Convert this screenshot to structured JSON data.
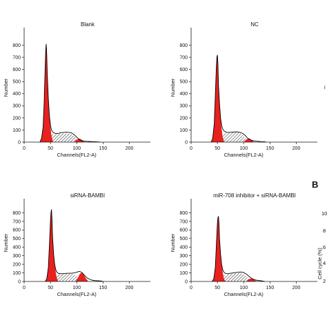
{
  "chart_data": [
    {
      "type": "area",
      "title": "Blank",
      "xlabel": "Channels(FL2-A)",
      "ylabel": "Number",
      "xlim": [
        0,
        240
      ],
      "ylim": [
        0,
        900
      ],
      "xticks": [
        "0",
        "50",
        "100",
        "150",
        "200"
      ],
      "yticks": [
        "0",
        "100",
        "200",
        "300",
        "400",
        "500",
        "600",
        "700",
        "800"
      ],
      "histogram": {
        "x": [
          30,
          33,
          36,
          38,
          40,
          41,
          42,
          43,
          44,
          46,
          48,
          50,
          52,
          55,
          60,
          65,
          70,
          75,
          80,
          85,
          90,
          95,
          100,
          105,
          110,
          115,
          120,
          125,
          130,
          135,
          140,
          145
        ],
        "y": [
          0,
          30,
          120,
          320,
          620,
          760,
          810,
          720,
          560,
          360,
          220,
          140,
          100,
          80,
          70,
          72,
          78,
          80,
          82,
          80,
          76,
          62,
          40,
          20,
          12,
          8,
          6,
          5,
          4,
          3,
          2,
          0
        ]
      },
      "g1_peak": {
        "x": [
          30,
          33,
          36,
          38,
          40,
          41,
          42,
          43,
          44,
          46,
          48,
          50,
          52,
          55
        ],
        "y": [
          0,
          30,
          120,
          320,
          620,
          760,
          810,
          720,
          560,
          360,
          220,
          120,
          50,
          0
        ]
      },
      "s_phase": {
        "x": [
          45,
          50,
          55,
          60,
          65,
          70,
          75,
          80,
          85,
          90,
          95,
          100,
          102
        ],
        "y": [
          30,
          55,
          65,
          65,
          68,
          70,
          72,
          72,
          70,
          64,
          50,
          25,
          0
        ]
      },
      "g2_peak": {
        "x": [
          95,
          100,
          105,
          110,
          115
        ],
        "y": [
          0,
          20,
          30,
          18,
          0
        ]
      }
    },
    {
      "type": "area",
      "title": "NC",
      "xlabel": "Channels(FL2-A)",
      "ylabel": "Number",
      "xlim": [
        0,
        240
      ],
      "ylim": [
        0,
        900
      ],
      "xticks": [
        "0",
        "50",
        "100",
        "150",
        "200"
      ],
      "yticks": [
        "0",
        "100",
        "200",
        "300",
        "400",
        "500",
        "600",
        "700",
        "800"
      ],
      "histogram": {
        "x": [
          38,
          41,
          44,
          46,
          48,
          49,
          50,
          51,
          52,
          54,
          56,
          58,
          60,
          63,
          68,
          73,
          78,
          83,
          88,
          93,
          98,
          103,
          108,
          113,
          118,
          123,
          128,
          133,
          138,
          143
        ],
        "y": [
          0,
          30,
          150,
          380,
          620,
          700,
          720,
          650,
          480,
          320,
          200,
          140,
          110,
          90,
          80,
          80,
          82,
          84,
          84,
          80,
          72,
          55,
          30,
          18,
          12,
          8,
          6,
          4,
          3,
          0
        ]
      },
      "g1_peak": {
        "x": [
          38,
          41,
          44,
          46,
          48,
          49,
          50,
          51,
          52,
          54,
          56,
          58,
          60,
          63
        ],
        "y": [
          0,
          30,
          150,
          380,
          620,
          700,
          720,
          650,
          480,
          320,
          200,
          110,
          40,
          0
        ]
      },
      "s_phase": {
        "x": [
          52,
          56,
          60,
          65,
          70,
          75,
          80,
          85,
          90,
          95,
          100,
          105,
          108
        ],
        "y": [
          30,
          55,
          70,
          74,
          76,
          78,
          80,
          80,
          76,
          68,
          50,
          22,
          0
        ]
      },
      "g2_peak": {
        "x": [
          100,
          105,
          110,
          115,
          120
        ],
        "y": [
          0,
          22,
          32,
          18,
          0
        ]
      }
    },
    {
      "type": "area",
      "title": "siRNA-BAMBI",
      "xlabel": "Channels(FL2-A)",
      "ylabel": "Number",
      "xlim": [
        0,
        240
      ],
      "ylim": [
        0,
        900
      ],
      "xticks": [
        "0",
        "50",
        "100",
        "150",
        "200"
      ],
      "yticks": [
        "0",
        "100",
        "200",
        "300",
        "400",
        "500",
        "600",
        "700",
        "800"
      ],
      "histogram": {
        "x": [
          40,
          43,
          46,
          48,
          50,
          51,
          52,
          53,
          54,
          56,
          58,
          60,
          62,
          65,
          70,
          75,
          80,
          85,
          90,
          95,
          100,
          105,
          110,
          115,
          120,
          125,
          130,
          135,
          140,
          145,
          150
        ],
        "y": [
          0,
          30,
          160,
          420,
          700,
          800,
          840,
          720,
          520,
          320,
          200,
          140,
          110,
          95,
          90,
          92,
          95,
          96,
          96,
          100,
          108,
          118,
          104,
          70,
          40,
          24,
          14,
          10,
          8,
          6,
          0
        ]
      },
      "g1_peak": {
        "x": [
          40,
          43,
          46,
          48,
          50,
          51,
          52,
          53,
          54,
          56,
          58,
          60,
          62,
          65
        ],
        "y": [
          0,
          30,
          160,
          420,
          700,
          800,
          840,
          720,
          520,
          320,
          200,
          110,
          40,
          0
        ]
      },
      "s_phase": {
        "x": [
          54,
          58,
          62,
          66,
          70,
          75,
          80,
          85,
          90,
          95,
          100,
          104,
          106
        ],
        "y": [
          30,
          60,
          75,
          84,
          86,
          88,
          90,
          90,
          88,
          82,
          60,
          25,
          0
        ]
      },
      "g2_peak": {
        "x": [
          98,
          102,
          106,
          110,
          114,
          118,
          122
        ],
        "y": [
          0,
          40,
          90,
          100,
          70,
          30,
          0
        ]
      }
    },
    {
      "type": "area",
      "title": "miR-708 inhibitor + siRNA-BAMBI",
      "xlabel": "Channels(FL2-A)",
      "ylabel": "Number",
      "xlim": [
        0,
        240
      ],
      "ylim": [
        0,
        900
      ],
      "xticks": [
        "0",
        "50",
        "100",
        "150",
        "200"
      ],
      "yticks": [
        "0",
        "100",
        "200",
        "300",
        "400",
        "500",
        "600",
        "700",
        "800"
      ],
      "histogram": {
        "x": [
          40,
          43,
          46,
          48,
          50,
          51,
          52,
          53,
          54,
          56,
          58,
          60,
          62,
          65,
          70,
          75,
          80,
          85,
          90,
          95,
          100,
          105,
          110,
          115,
          120,
          125,
          130,
          135,
          140
        ],
        "y": [
          0,
          30,
          160,
          420,
          680,
          740,
          760,
          680,
          500,
          320,
          200,
          140,
          110,
          95,
          90,
          96,
          100,
          104,
          108,
          110,
          104,
          86,
          60,
          36,
          22,
          14,
          10,
          6,
          0
        ]
      },
      "g1_peak": {
        "x": [
          40,
          43,
          46,
          48,
          50,
          51,
          52,
          53,
          54,
          56,
          58,
          60,
          62,
          65
        ],
        "y": [
          0,
          30,
          160,
          420,
          680,
          740,
          760,
          680,
          500,
          320,
          200,
          110,
          40,
          0
        ]
      },
      "s_phase": {
        "x": [
          54,
          58,
          62,
          66,
          70,
          75,
          80,
          85,
          90,
          95,
          100,
          105,
          110,
          113
        ],
        "y": [
          30,
          55,
          70,
          80,
          84,
          88,
          92,
          96,
          98,
          96,
          86,
          60,
          25,
          0
        ]
      },
      "g2_peak": {
        "x": [
          105,
          110,
          115,
          120,
          125
        ],
        "y": [
          0,
          28,
          36,
          20,
          0
        ]
      }
    }
  ],
  "side_panel": {
    "letter": "B",
    "axis_label": "Cell cycle (%)",
    "tick_fragments": [
      "10",
      "8",
      "6",
      "4",
      "2"
    ],
    "top_fragment": "i"
  },
  "colors": {
    "g1_fill": "#e8211f",
    "g2_fill": "#e8211f",
    "hatch": "#111111",
    "axis": "#111111",
    "background": "#ffffff"
  }
}
